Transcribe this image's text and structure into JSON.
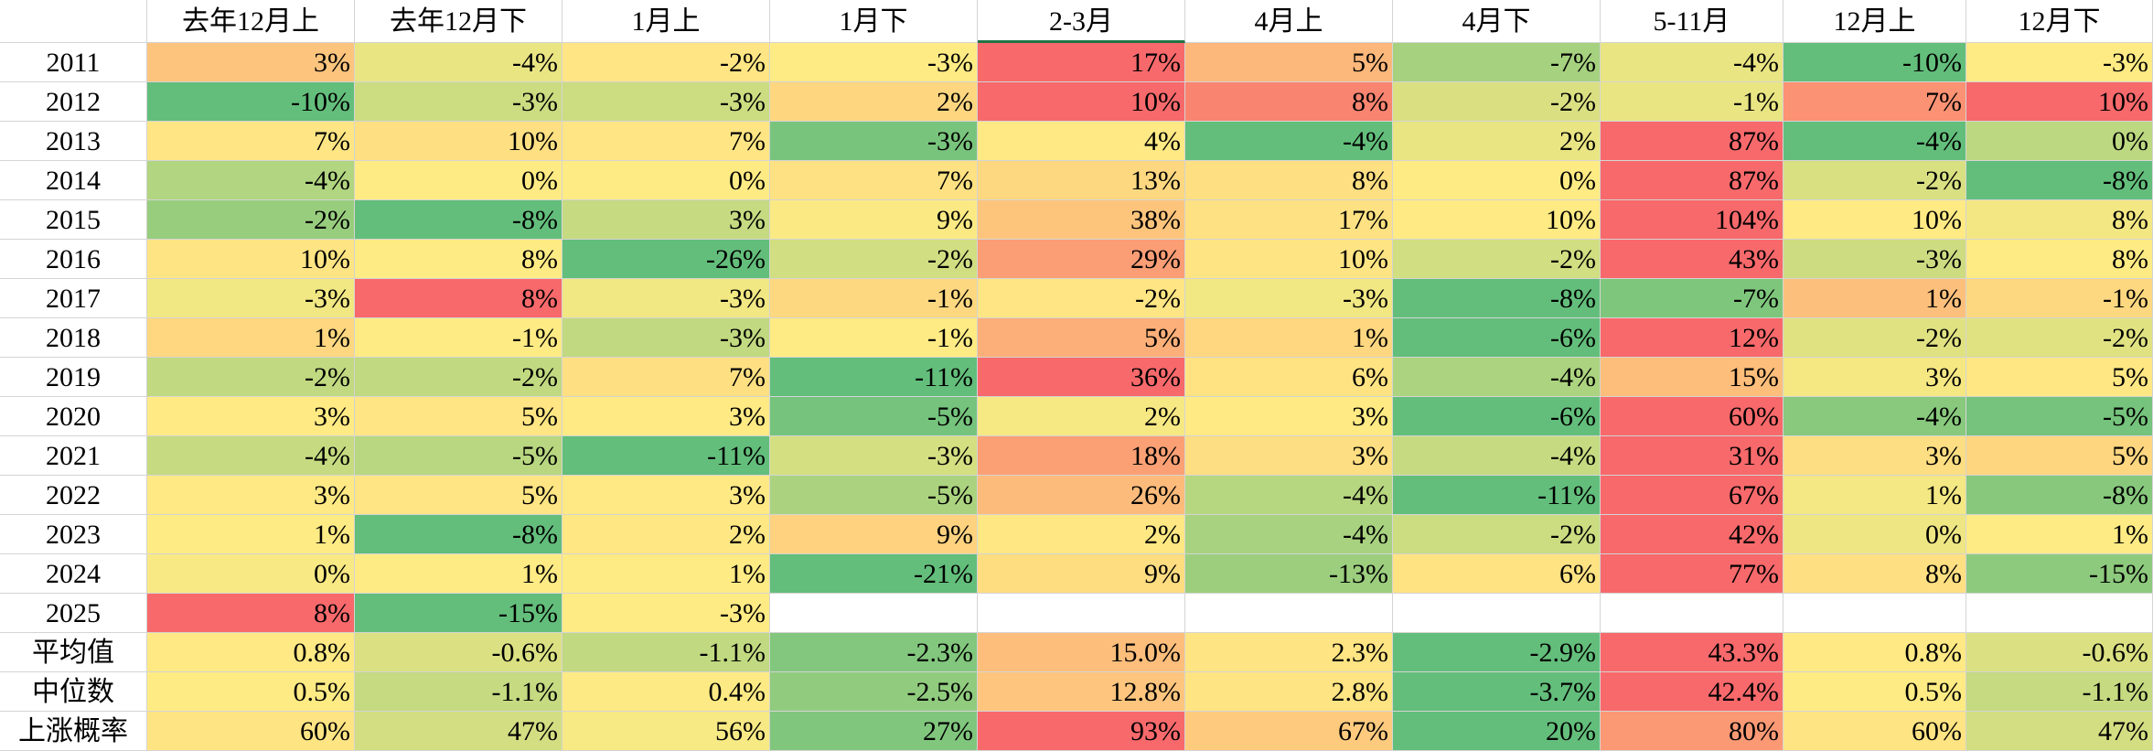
{
  "table": {
    "columns": [
      "去年12月上",
      "去年12月下",
      "1月上",
      "1月下",
      "2-3月",
      "4月上",
      "4月下",
      "5-11月",
      "12月上",
      "12月下"
    ],
    "rows": [
      {
        "label": "2011",
        "cells": [
          "3%",
          "-4%",
          "-2%",
          "-3%",
          "17%",
          "5%",
          "-7%",
          "-4%",
          "-10%",
          "-3%"
        ]
      },
      {
        "label": "2012",
        "cells": [
          "-10%",
          "-3%",
          "-3%",
          "2%",
          "10%",
          "8%",
          "-2%",
          "-1%",
          "7%",
          "10%"
        ]
      },
      {
        "label": "2013",
        "cells": [
          "7%",
          "10%",
          "7%",
          "-3%",
          "4%",
          "-4%",
          "2%",
          "87%",
          "-4%",
          "0%"
        ]
      },
      {
        "label": "2014",
        "cells": [
          "-4%",
          "0%",
          "0%",
          "7%",
          "13%",
          "8%",
          "0%",
          "87%",
          "-2%",
          "-8%"
        ]
      },
      {
        "label": "2015",
        "cells": [
          "-2%",
          "-8%",
          "3%",
          "9%",
          "38%",
          "17%",
          "10%",
          "104%",
          "10%",
          "8%"
        ]
      },
      {
        "label": "2016",
        "cells": [
          "10%",
          "8%",
          "-26%",
          "-2%",
          "29%",
          "10%",
          "-2%",
          "43%",
          "-3%",
          "8%"
        ]
      },
      {
        "label": "2017",
        "cells": [
          "-3%",
          "8%",
          "-3%",
          "-1%",
          "-2%",
          "-3%",
          "-8%",
          "-7%",
          "1%",
          "-1%"
        ]
      },
      {
        "label": "2018",
        "cells": [
          "1%",
          "-1%",
          "-3%",
          "-1%",
          "5%",
          "1%",
          "-6%",
          "12%",
          "-2%",
          "-2%"
        ]
      },
      {
        "label": "2019",
        "cells": [
          "-2%",
          "-2%",
          "7%",
          "-11%",
          "36%",
          "6%",
          "-4%",
          "15%",
          "3%",
          "5%"
        ]
      },
      {
        "label": "2020",
        "cells": [
          "3%",
          "5%",
          "3%",
          "-5%",
          "2%",
          "3%",
          "-6%",
          "60%",
          "-4%",
          "-5%"
        ]
      },
      {
        "label": "2021",
        "cells": [
          "-4%",
          "-5%",
          "-11%",
          "-3%",
          "18%",
          "3%",
          "-4%",
          "31%",
          "3%",
          "5%"
        ]
      },
      {
        "label": "2022",
        "cells": [
          "3%",
          "5%",
          "3%",
          "-5%",
          "26%",
          "-4%",
          "-11%",
          "67%",
          "1%",
          "-8%"
        ]
      },
      {
        "label": "2023",
        "cells": [
          "1%",
          "-8%",
          "2%",
          "9%",
          "2%",
          "-4%",
          "-2%",
          "42%",
          "0%",
          "1%"
        ]
      },
      {
        "label": "2024",
        "cells": [
          "0%",
          "1%",
          "1%",
          "-21%",
          "9%",
          "-13%",
          "6%",
          "77%",
          "8%",
          "-15%"
        ]
      },
      {
        "label": "2025",
        "cells": [
          "8%",
          "-15%",
          "-3%"
        ]
      },
      {
        "label": "平均值",
        "cells": [
          "0.8%",
          "-0.6%",
          "-1.1%",
          "-2.3%",
          "15.0%",
          "2.3%",
          "-2.9%",
          "43.3%",
          "0.8%",
          "-0.6%"
        ]
      },
      {
        "label": "中位数",
        "cells": [
          "0.5%",
          "-1.1%",
          "0.4%",
          "-2.5%",
          "12.8%",
          "2.8%",
          "-3.7%",
          "42.4%",
          "0.5%",
          "-1.1%"
        ]
      },
      {
        "label": "上涨概率",
        "cells": [
          "60%",
          "47%",
          "56%",
          "27%",
          "93%",
          "67%",
          "20%",
          "80%",
          "60%",
          "47%"
        ]
      }
    ]
  }
}
